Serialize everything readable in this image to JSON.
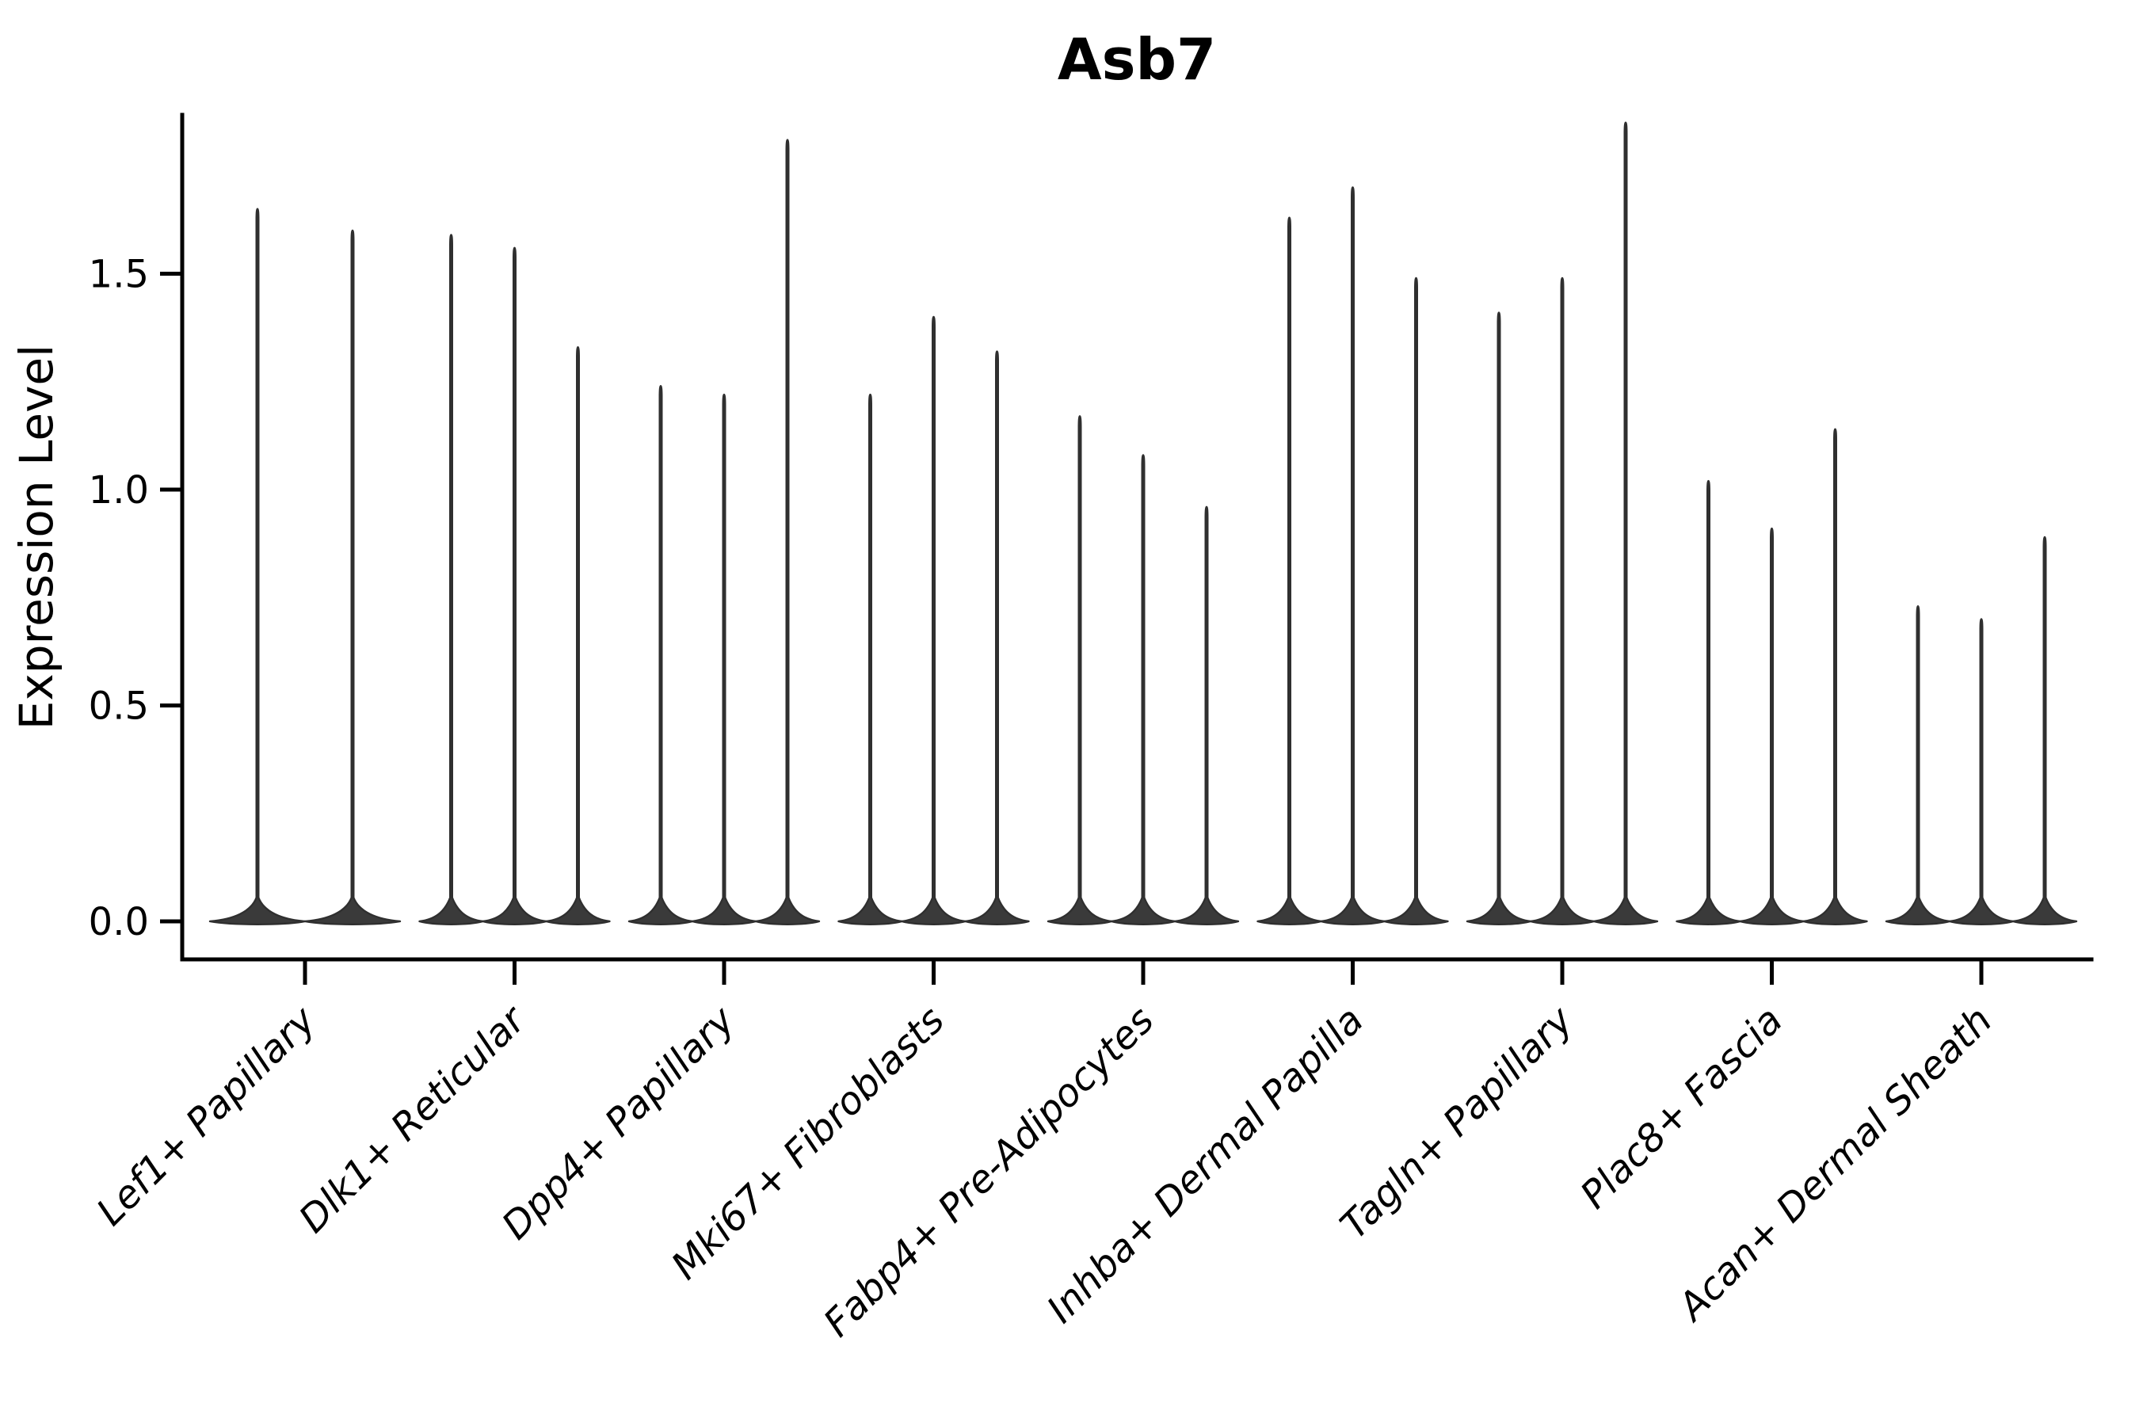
{
  "title": "Asb7",
  "ylabel": "Expression Level",
  "colors": {
    "background": "#ffffff",
    "axis": "#000000",
    "text": "#000000",
    "violin_fill": "#3a3a3a",
    "violin_stroke": "#2f2f2f"
  },
  "chart_data": {
    "type": "violin",
    "title": "Asb7",
    "xlabel": "",
    "ylabel": "Expression Level",
    "legend": "none",
    "grid": false,
    "spines": [
      "left",
      "bottom"
    ],
    "ylim": [
      -0.09,
      1.87
    ],
    "yticks": [
      {
        "value": 0.0,
        "label": "0.0"
      },
      {
        "value": 0.5,
        "label": "0.5"
      },
      {
        "value": 1.0,
        "label": "1.0"
      },
      {
        "value": 1.5,
        "label": "1.5"
      }
    ],
    "x_tick_rotation": 45,
    "categories": [
      "Lef1+ Papillary",
      "Dlk1+ Reticular",
      "Dpp4+ Papillary",
      "Mki67+ Fibroblasts",
      "Fabp4+ Pre-Adipocytes",
      "Inhba+ Dermal Papilla",
      "Tagln+ Papillary",
      "Plac8+ Fascia",
      "Acan+ Dermal Sheath"
    ],
    "groups": [
      {
        "label": "Lef1+ Papillary",
        "violin_max_values": [
          1.65,
          1.6
        ],
        "baseline_value": 0.0
      },
      {
        "label": "Dlk1+ Reticular",
        "violin_max_values": [
          1.59,
          1.56,
          1.33
        ],
        "baseline_value": 0.0
      },
      {
        "label": "Dpp4+ Papillary",
        "violin_max_values": [
          1.24,
          1.22,
          1.81
        ],
        "baseline_value": 0.0
      },
      {
        "label": "Mki67+ Fibroblasts",
        "violin_max_values": [
          1.22,
          1.4,
          1.32
        ],
        "baseline_value": 0.0
      },
      {
        "label": "Fabp4+ Pre-Adipocytes",
        "violin_max_values": [
          1.17,
          1.08,
          0.96
        ],
        "baseline_value": 0.0
      },
      {
        "label": "Inhba+ Dermal Papilla",
        "violin_max_values": [
          1.63,
          1.7,
          1.49
        ],
        "baseline_value": 0.0
      },
      {
        "label": "Tagln+ Papillary",
        "violin_max_values": [
          1.41,
          1.49,
          1.85
        ],
        "baseline_value": 0.0
      },
      {
        "label": "Plac8+ Fascia",
        "violin_max_values": [
          1.02,
          0.91,
          1.14
        ],
        "baseline_value": 0.0
      },
      {
        "label": "Acan+ Dermal Sheath",
        "violin_max_values": [
          0.73,
          0.7,
          0.89
        ],
        "baseline_value": 0.0
      }
    ]
  }
}
